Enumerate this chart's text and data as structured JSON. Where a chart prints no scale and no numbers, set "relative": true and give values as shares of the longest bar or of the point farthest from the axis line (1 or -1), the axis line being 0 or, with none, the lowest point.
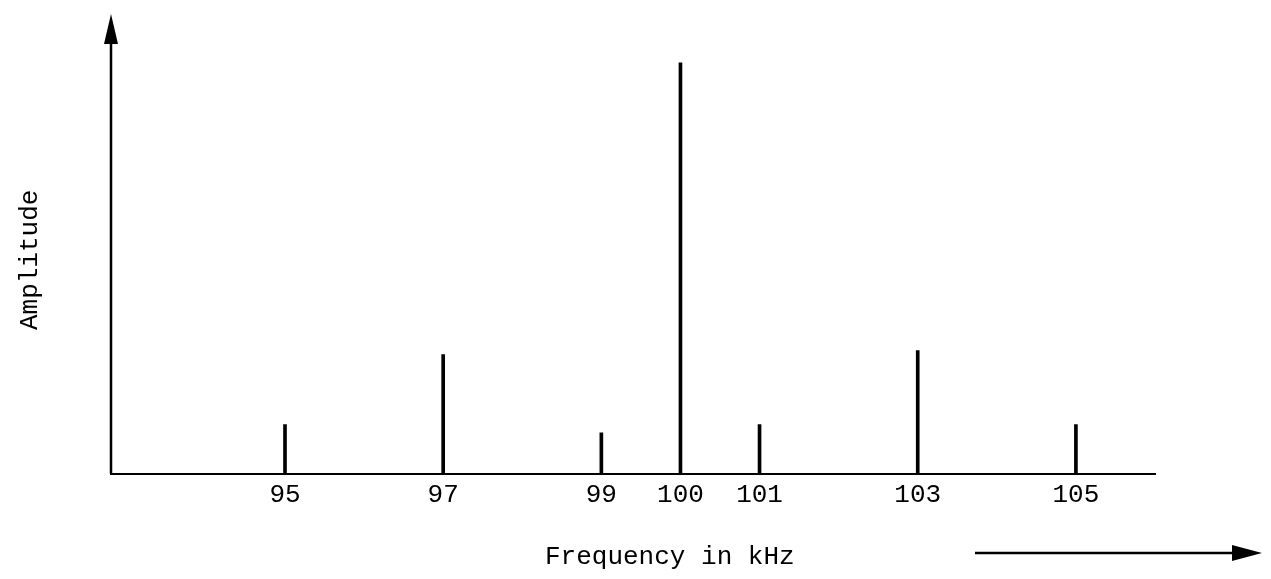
{
  "chart_data": {
    "type": "bar",
    "xlabel": "Frequency in kHz",
    "ylabel": "Amplitude",
    "relative": true,
    "x": [
      95,
      97,
      99,
      100,
      101,
      103,
      105
    ],
    "values": [
      0.12,
      0.29,
      0.1,
      1,
      0.12,
      0.3,
      0.12
    ],
    "color": "#000000",
    "xlim": [
      92.8,
      106
    ],
    "xticks": [
      95,
      97,
      99,
      100,
      101,
      103,
      105
    ],
    "grid": false,
    "legend": false
  }
}
